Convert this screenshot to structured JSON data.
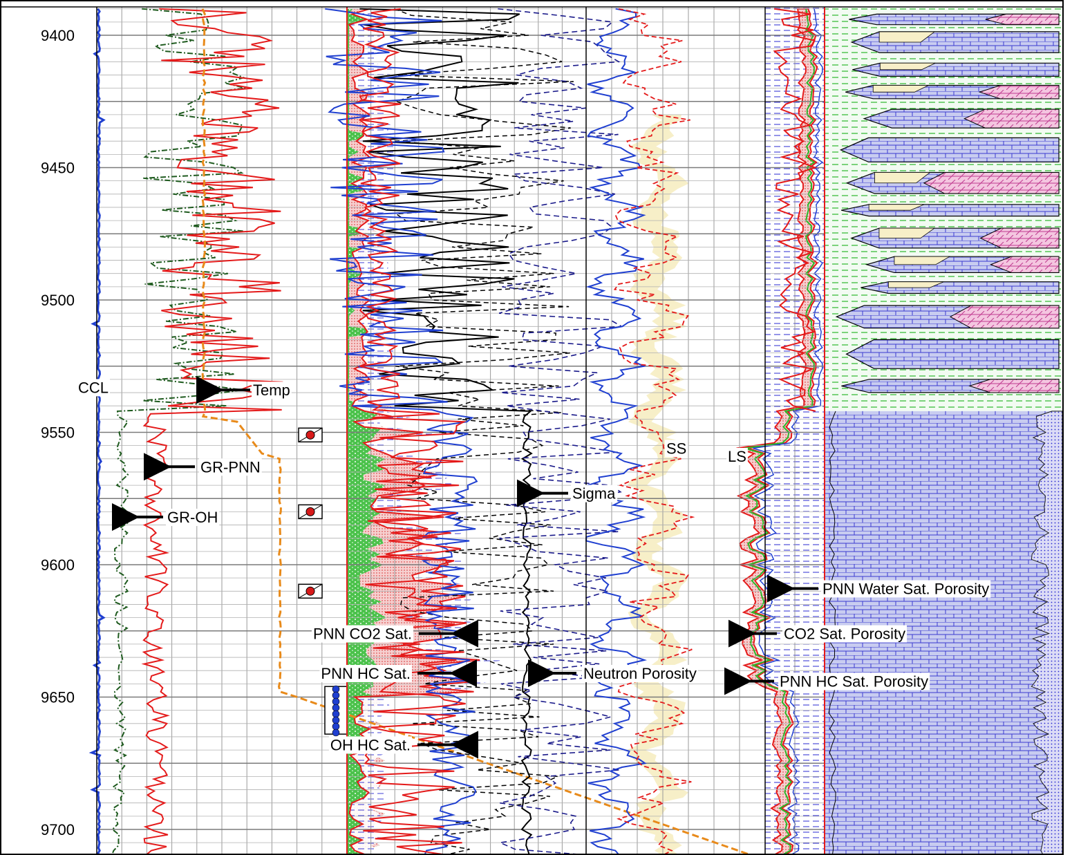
{
  "chart_data": {
    "type": "line",
    "depth_ticks": [
      "9400",
      "9450",
      "9500",
      "9550",
      "9600",
      "9650",
      "9700"
    ],
    "depth_values": [
      9400,
      9450,
      9500,
      9550,
      9600,
      9650,
      9700
    ],
    "depth_range": [
      9390,
      9710
    ],
    "tracks": [
      {
        "name": "track-1",
        "curves": [
          "CCL",
          "GR-PNN",
          "GR-OH",
          "Temp"
        ]
      },
      {
        "name": "track-2",
        "curves": [
          "PNN CO2 Sat.",
          "PNN HC Sat.",
          "OH HC Sat.",
          "Sigma"
        ]
      },
      {
        "name": "track-3",
        "curves": [
          "Neutron Porosity",
          "SS",
          "LS"
        ]
      },
      {
        "name": "track-4",
        "curves": [
          "PNN Water Sat. Porosity",
          "CO2 Sat. Porosity",
          "PNN HC Sat. Porosity"
        ]
      },
      {
        "name": "track-5",
        "curves": []
      }
    ],
    "annotations": [
      {
        "text": "CCL",
        "depth": 9533,
        "track": 1
      },
      {
        "text": "Temp",
        "depth": 9534,
        "track": 1
      },
      {
        "text": "GR-PNN",
        "depth": 9563,
        "track": 1
      },
      {
        "text": "GR-OH",
        "depth": 9582,
        "track": 1
      },
      {
        "text": "SS",
        "depth": 9556,
        "track": 3
      },
      {
        "text": "LS",
        "depth": 9559,
        "track": 3
      },
      {
        "text": "Sigma",
        "depth": 9573,
        "track": 2
      },
      {
        "text": "PNN Water Sat. Porosity",
        "depth": 9609,
        "track": 4
      },
      {
        "text": "PNN CO2 Sat.",
        "depth": 9626,
        "track": 2
      },
      {
        "text": "CO2 Sat. Porosity",
        "depth": 9626,
        "track": 4
      },
      {
        "text": "PNN HC Sat.",
        "depth": 9641,
        "track": 2
      },
      {
        "text": "Neutron Porosity",
        "depth": 9641,
        "track": 3
      },
      {
        "text": "PNN HC Sat. Porosity",
        "depth": 9644,
        "track": 4
      },
      {
        "text": "OH HC Sat.",
        "depth": 9668,
        "track": 2
      }
    ],
    "perforation_markers": [
      9551,
      9580,
      9610
    ],
    "lithology_contact_depth": 9542,
    "grid": true,
    "colors": {
      "gr_pnn": "#e41a1a",
      "gr_oh": "#1e5a1e",
      "ccl": "#1f3fd0",
      "temp": "#e88a1a",
      "sigma": "#000000",
      "pnn_sat": "#e41a1a",
      "oh_sat": "#1f3fd0",
      "co2_fill": "#f2b8b8",
      "water_fill": "#3dbf3d",
      "ss_fill": "#f7efc8",
      "lime_fill": "#3a3ad0",
      "shale_fill": "#e878b8"
    }
  }
}
